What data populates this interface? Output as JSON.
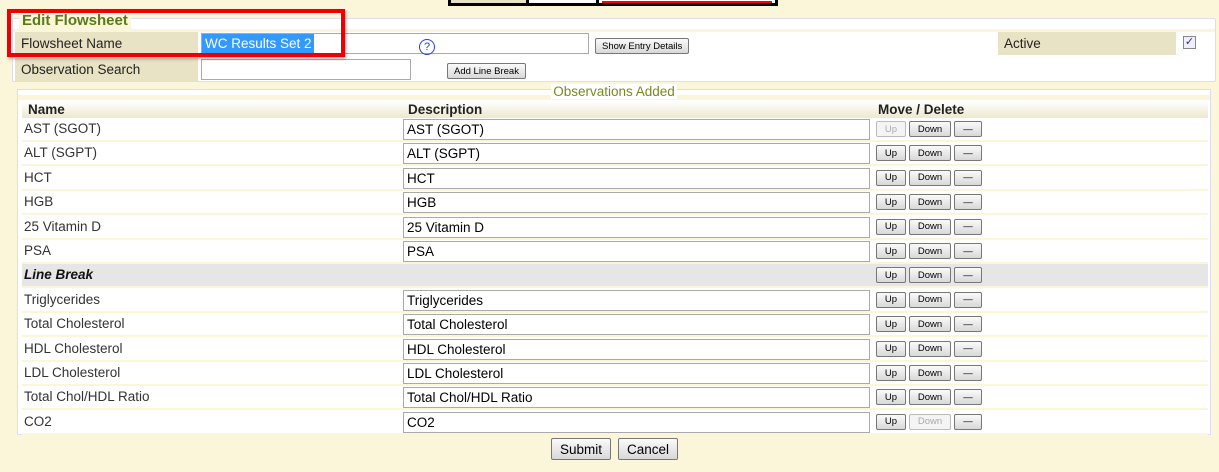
{
  "colors": {
    "legend": "#5a7a1a",
    "highlight": "#e00000",
    "background": "#fbf6d9",
    "label_bg": "#e8e3c4"
  },
  "form": {
    "title": "Edit Flowsheet",
    "flowsheet_name_label": "Flowsheet Name",
    "flowsheet_name_value": "WC Results Set 2",
    "show_entry_details": "Show Entry Details",
    "active_label": "Active",
    "active_checked": true,
    "observation_search_label": "Observation Search",
    "observation_search_value": "",
    "help_icon": "?",
    "add_line_break": "Add Line Break"
  },
  "observations": {
    "legend": "Observations Added",
    "headers": {
      "name": "Name",
      "description": "Description",
      "actions": "Move / Delete"
    },
    "buttons": {
      "up": "Up",
      "down": "Down",
      "delete": "—"
    },
    "rows": [
      {
        "name": "AST (SGOT)",
        "description": "AST (SGOT)",
        "up_enabled": false,
        "down_enabled": true
      },
      {
        "name": "ALT (SGPT)",
        "description": "ALT (SGPT)",
        "up_enabled": true,
        "down_enabled": true
      },
      {
        "name": "HCT",
        "description": "HCT",
        "up_enabled": true,
        "down_enabled": true
      },
      {
        "name": "HGB",
        "description": "HGB",
        "up_enabled": true,
        "down_enabled": true
      },
      {
        "name": "25 Vitamin D",
        "description": "25 Vitamin D",
        "up_enabled": true,
        "down_enabled": true
      },
      {
        "name": "PSA",
        "description": "PSA",
        "up_enabled": true,
        "down_enabled": true
      },
      {
        "name": "Line Break",
        "line_break": true,
        "up_enabled": true,
        "down_enabled": true
      },
      {
        "name": "Triglycerides",
        "description": "Triglycerides",
        "up_enabled": true,
        "down_enabled": true
      },
      {
        "name": "Total Cholesterol",
        "description": "Total Cholesterol",
        "up_enabled": true,
        "down_enabled": true
      },
      {
        "name": "HDL Cholesterol",
        "description": "HDL Cholesterol",
        "up_enabled": true,
        "down_enabled": true
      },
      {
        "name": "LDL Cholesterol",
        "description": "LDL Cholesterol",
        "up_enabled": true,
        "down_enabled": true
      },
      {
        "name": "Total Chol/HDL Ratio",
        "description": "Total Chol/HDL Ratio",
        "up_enabled": true,
        "down_enabled": true
      },
      {
        "name": "CO2",
        "description": "CO2",
        "up_enabled": true,
        "down_enabled": false
      }
    ]
  },
  "actions": {
    "submit": "Submit",
    "cancel": "Cancel"
  }
}
